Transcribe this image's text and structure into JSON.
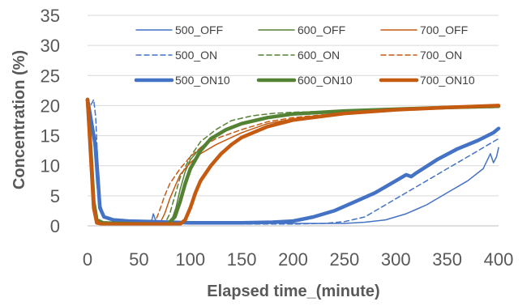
{
  "chart_data": {
    "type": "line",
    "xlabel": "Elapsed time_(minute)",
    "ylabel": "Concentration (%)",
    "xlim": [
      0,
      400
    ],
    "ylim": [
      0,
      35
    ],
    "x_ticks": [
      0,
      50,
      100,
      150,
      200,
      250,
      300,
      350,
      400
    ],
    "y_ticks": [
      0,
      5,
      10,
      15,
      20,
      25,
      30,
      35
    ],
    "grid": "horizontal",
    "legend_position": "top",
    "series": [
      {
        "name": "500_OFF",
        "color": "#4472C4",
        "style": "solid",
        "width": "thin",
        "points": [
          [
            0,
            21
          ],
          [
            3,
            19
          ],
          [
            6,
            14
          ],
          [
            9,
            7
          ],
          [
            12,
            3
          ],
          [
            16,
            1.5
          ],
          [
            25,
            1.0
          ],
          [
            40,
            0.8
          ],
          [
            55,
            0.7
          ],
          [
            62,
            0.6
          ],
          [
            64,
            2.0
          ],
          [
            66,
            1.0
          ],
          [
            70,
            0.6
          ],
          [
            90,
            0.5
          ],
          [
            150,
            0.5
          ],
          [
            200,
            0.4
          ],
          [
            250,
            0.4
          ],
          [
            270,
            0.6
          ],
          [
            290,
            1.0
          ],
          [
            310,
            2.0
          ],
          [
            330,
            3.5
          ],
          [
            350,
            5.5
          ],
          [
            370,
            7.5
          ],
          [
            385,
            9.5
          ],
          [
            392,
            12
          ],
          [
            395,
            10.5
          ],
          [
            398,
            11.5
          ],
          [
            400,
            13
          ]
        ]
      },
      {
        "name": "500_ON",
        "color": "#4472C4",
        "style": "dashed",
        "width": "thin",
        "points": [
          [
            0,
            21
          ],
          [
            3,
            20
          ],
          [
            6,
            21
          ],
          [
            8,
            18
          ],
          [
            10,
            10
          ],
          [
            12,
            4
          ],
          [
            16,
            1.5
          ],
          [
            25,
            0.8
          ],
          [
            40,
            0.6
          ],
          [
            60,
            0.5
          ],
          [
            100,
            0.4
          ],
          [
            150,
            0.3
          ],
          [
            200,
            0.3
          ],
          [
            230,
            0.4
          ],
          [
            250,
            0.7
          ],
          [
            270,
            1.5
          ],
          [
            290,
            3.5
          ],
          [
            310,
            5.5
          ],
          [
            330,
            7.5
          ],
          [
            350,
            9.5
          ],
          [
            370,
            11.5
          ],
          [
            390,
            13.5
          ],
          [
            400,
            14.5
          ]
        ]
      },
      {
        "name": "500_ON10",
        "color": "#4472C4",
        "style": "solid",
        "width": "thick",
        "points": [
          [
            0,
            21
          ],
          [
            3,
            18
          ],
          [
            6,
            15
          ],
          [
            8,
            13
          ],
          [
            10,
            8
          ],
          [
            12,
            3
          ],
          [
            16,
            1.5
          ],
          [
            25,
            1.0
          ],
          [
            40,
            0.8
          ],
          [
            60,
            0.7
          ],
          [
            80,
            0.6
          ],
          [
            100,
            0.5
          ],
          [
            150,
            0.5
          ],
          [
            180,
            0.6
          ],
          [
            200,
            0.8
          ],
          [
            220,
            1.5
          ],
          [
            240,
            2.5
          ],
          [
            260,
            4.0
          ],
          [
            280,
            5.5
          ],
          [
            300,
            7.5
          ],
          [
            310,
            8.5
          ],
          [
            315,
            8.2
          ],
          [
            320,
            8.8
          ],
          [
            340,
            11
          ],
          [
            360,
            12.8
          ],
          [
            380,
            14.2
          ],
          [
            395,
            15.5
          ],
          [
            400,
            16.2
          ]
        ]
      },
      {
        "name": "600_OFF",
        "color": "#548235",
        "style": "solid",
        "width": "thin",
        "points": [
          [
            0,
            21
          ],
          [
            3,
            15
          ],
          [
            6,
            5
          ],
          [
            9,
            1
          ],
          [
            15,
            0.5
          ],
          [
            30,
            0.4
          ],
          [
            60,
            0.3
          ],
          [
            75,
            0.3
          ],
          [
            82,
            1.0
          ],
          [
            86,
            3.0
          ],
          [
            90,
            6.0
          ],
          [
            95,
            9.0
          ],
          [
            100,
            11
          ],
          [
            110,
            13
          ],
          [
            120,
            14.5
          ],
          [
            135,
            16
          ],
          [
            150,
            17
          ],
          [
            175,
            18
          ],
          [
            200,
            18.5
          ],
          [
            250,
            19
          ],
          [
            300,
            19.3
          ],
          [
            350,
            19.6
          ],
          [
            400,
            19.8
          ]
        ]
      },
      {
        "name": "600_ON",
        "color": "#548235",
        "style": "dashed",
        "width": "thin",
        "points": [
          [
            0,
            21
          ],
          [
            3,
            15
          ],
          [
            6,
            5
          ],
          [
            9,
            1
          ],
          [
            15,
            0.5
          ],
          [
            30,
            0.4
          ],
          [
            60,
            0.3
          ],
          [
            75,
            0.3
          ],
          [
            80,
            2.0
          ],
          [
            85,
            5.0
          ],
          [
            90,
            8.0
          ],
          [
            100,
            11.5
          ],
          [
            110,
            14
          ],
          [
            125,
            16
          ],
          [
            140,
            17.5
          ],
          [
            160,
            18.3
          ],
          [
            180,
            18.7
          ],
          [
            200,
            18.9
          ],
          [
            250,
            19.1
          ],
          [
            300,
            19.3
          ],
          [
            350,
            19.5
          ],
          [
            400,
            19.7
          ]
        ]
      },
      {
        "name": "600_ON10",
        "color": "#548235",
        "style": "solid",
        "width": "thick",
        "points": [
          [
            0,
            21
          ],
          [
            3,
            13
          ],
          [
            6,
            4
          ],
          [
            9,
            1
          ],
          [
            15,
            0.5
          ],
          [
            30,
            0.4
          ],
          [
            60,
            0.3
          ],
          [
            78,
            0.3
          ],
          [
            85,
            1.5
          ],
          [
            90,
            4.0
          ],
          [
            95,
            7.0
          ],
          [
            100,
            9.5
          ],
          [
            110,
            12.5
          ],
          [
            120,
            14.5
          ],
          [
            135,
            16
          ],
          [
            150,
            17
          ],
          [
            175,
            18
          ],
          [
            200,
            18.6
          ],
          [
            250,
            19.1
          ],
          [
            300,
            19.4
          ],
          [
            350,
            19.7
          ],
          [
            400,
            19.9
          ]
        ]
      },
      {
        "name": "700_OFF",
        "color": "#C55A11",
        "style": "solid",
        "width": "thin",
        "points": [
          [
            0,
            21
          ],
          [
            3,
            14
          ],
          [
            6,
            4
          ],
          [
            9,
            0.8
          ],
          [
            15,
            0.4
          ],
          [
            30,
            0.3
          ],
          [
            60,
            0.3
          ],
          [
            70,
            0.3
          ],
          [
            75,
            2.0
          ],
          [
            80,
            4.5
          ],
          [
            85,
            6.5
          ],
          [
            90,
            8.5
          ],
          [
            100,
            10.5
          ],
          [
            110,
            12
          ],
          [
            125,
            13.5
          ],
          [
            150,
            15.5
          ],
          [
            175,
            17
          ],
          [
            200,
            17.8
          ],
          [
            250,
            18.8
          ],
          [
            300,
            19.3
          ],
          [
            350,
            19.7
          ],
          [
            400,
            20
          ]
        ]
      },
      {
        "name": "700_ON",
        "color": "#C55A11",
        "style": "dashed",
        "width": "thin",
        "points": [
          [
            0,
            21
          ],
          [
            3,
            13
          ],
          [
            6,
            4
          ],
          [
            9,
            0.8
          ],
          [
            15,
            0.4
          ],
          [
            30,
            0.3
          ],
          [
            60,
            0.3
          ],
          [
            65,
            0.3
          ],
          [
            70,
            2.5
          ],
          [
            75,
            5.0
          ],
          [
            80,
            7.0
          ],
          [
            90,
            9.5
          ],
          [
            100,
            11.5
          ],
          [
            110,
            13
          ],
          [
            125,
            14.5
          ],
          [
            150,
            16
          ],
          [
            175,
            17.3
          ],
          [
            200,
            18
          ],
          [
            250,
            18.8
          ],
          [
            300,
            19.3
          ],
          [
            350,
            19.7
          ],
          [
            400,
            20
          ]
        ]
      },
      {
        "name": "700_ON10",
        "color": "#C55A11",
        "style": "solid",
        "width": "thick",
        "points": [
          [
            0,
            21
          ],
          [
            3,
            12
          ],
          [
            6,
            3
          ],
          [
            9,
            0.5
          ],
          [
            15,
            0.3
          ],
          [
            30,
            0.3
          ],
          [
            60,
            0.3
          ],
          [
            90,
            0.3
          ],
          [
            95,
            1.0
          ],
          [
            100,
            3.0
          ],
          [
            105,
            5.5
          ],
          [
            110,
            7.5
          ],
          [
            120,
            10
          ],
          [
            130,
            12
          ],
          [
            140,
            13.5
          ],
          [
            150,
            14.7
          ],
          [
            175,
            16.5
          ],
          [
            200,
            17.6
          ],
          [
            250,
            18.7
          ],
          [
            300,
            19.3
          ],
          [
            350,
            19.7
          ],
          [
            400,
            20
          ]
        ]
      }
    ]
  }
}
